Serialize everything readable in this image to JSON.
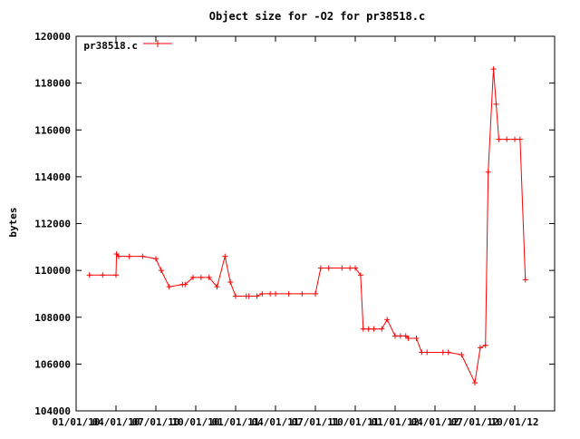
{
  "chart_data": {
    "type": "line",
    "title": "Object size for -O2 for pr38518.c",
    "xlabel": "",
    "ylabel": "bytes",
    "ylim": [
      104000,
      120000
    ],
    "yticks": [
      104000,
      106000,
      108000,
      110000,
      112000,
      114000,
      116000,
      118000,
      120000
    ],
    "xlim": [
      0,
      18
    ],
    "xtick_labels": [
      "01/01/10",
      "04/01/10",
      "07/01/10",
      "10/01/10",
      "01/01/11",
      "04/01/11",
      "07/01/11",
      "10/01/11",
      "01/01/12",
      "04/01/12",
      "07/01/12",
      "10/01/12"
    ],
    "xtick_positions": [
      0,
      1.5,
      3,
      4.5,
      6,
      7.5,
      9,
      10.5,
      12,
      13.5,
      15,
      16.5
    ],
    "grid": false,
    "legend": "top-left",
    "color": "#ff0000",
    "series": [
      {
        "name": "pr38518.c",
        "x": [
          0.5,
          1.0,
          1.5,
          1.52,
          1.6,
          2.0,
          2.5,
          3.0,
          3.2,
          3.5,
          4.0,
          4.1,
          4.4,
          4.7,
          5.0,
          5.3,
          5.6,
          5.8,
          6.0,
          6.4,
          6.5,
          6.8,
          7.0,
          7.3,
          7.5,
          8.0,
          8.5,
          9.0,
          9.2,
          9.5,
          10.0,
          10.3,
          10.5,
          10.7,
          10.8,
          11.0,
          11.2,
          11.5,
          11.7,
          12.0,
          12.2,
          12.4,
          12.5,
          12.8,
          13.0,
          13.2,
          13.8,
          14.0,
          14.5,
          15.0,
          15.2,
          15.4,
          15.5,
          15.7,
          15.8,
          15.9,
          16.2,
          16.5,
          16.7,
          16.9
        ],
        "y": [
          109800,
          109800,
          109800,
          110700,
          110600,
          110600,
          110600,
          110500,
          110000,
          109300,
          109400,
          109400,
          109700,
          109700,
          109700,
          109300,
          110600,
          109500,
          108900,
          108900,
          108900,
          108900,
          109000,
          109000,
          109000,
          109000,
          109000,
          109000,
          110100,
          110100,
          110100,
          110100,
          110100,
          109800,
          107500,
          107500,
          107500,
          107500,
          107900,
          107200,
          107200,
          107200,
          107100,
          107100,
          106500,
          106500,
          106500,
          106500,
          106400,
          105200,
          106700,
          106800,
          114200,
          118600,
          117100,
          115600,
          115600,
          115600,
          115600,
          109600
        ]
      }
    ]
  }
}
